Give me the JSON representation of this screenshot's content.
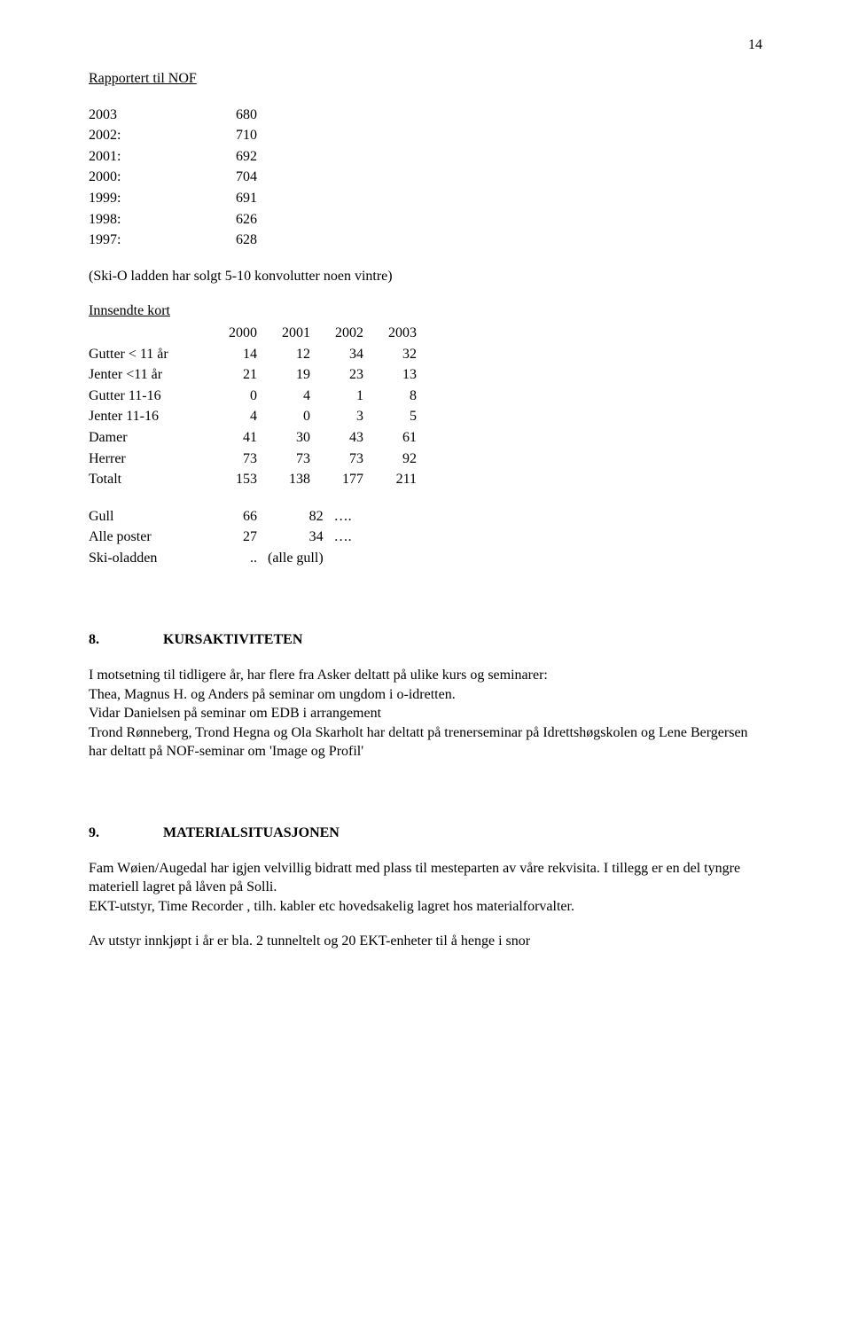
{
  "page_number": "14",
  "heading_rapportert": "Rapportert til NOF",
  "rapportert_rows": [
    {
      "year": "2003",
      "val": "680"
    },
    {
      "year": "2002:",
      "val": "710"
    },
    {
      "year": "2001:",
      "val": "692"
    },
    {
      "year": "2000:",
      "val": "704"
    },
    {
      "year": "1999:",
      "val": "691"
    },
    {
      "year": "1998:",
      "val": "626"
    },
    {
      "year": "1997:",
      "val": "628"
    }
  ],
  "skio_note": "(Ski-O ladden har solgt 5-10 konvolutter noen vintre)",
  "heading_innsendte": "Innsendte kort",
  "innsendte_header": [
    "",
    "2000",
    "2001",
    "2002",
    "2003"
  ],
  "innsendte_rows": [
    {
      "label": "Gutter < 11 år",
      "c": [
        "14",
        "12",
        "34",
        "32"
      ]
    },
    {
      "label": "Jenter <11 år",
      "c": [
        "21",
        "19",
        "23",
        "13"
      ]
    },
    {
      "label": "Gutter 11-16",
      "c": [
        "0",
        "4",
        "1",
        "8"
      ]
    },
    {
      "label": "Jenter 11-16",
      "c": [
        "4",
        "0",
        "3",
        "5"
      ]
    },
    {
      "label": "Damer",
      "c": [
        "41",
        "30",
        "43",
        "61"
      ]
    },
    {
      "label": "Herrer",
      "c": [
        "73",
        "73",
        "73",
        "92"
      ]
    }
  ],
  "innsendte_total": {
    "label": "Totalt",
    "c": [
      "153",
      "138",
      "177",
      "211"
    ]
  },
  "gull_rows": [
    {
      "label": "Gull",
      "c": [
        "66",
        "82",
        "…."
      ]
    },
    {
      "label": "Alle poster",
      "c": [
        "27",
        "34",
        "…."
      ]
    },
    {
      "label": "Ski-oladden",
      "c": [
        "..",
        "(alle gull)",
        ""
      ]
    }
  ],
  "sec8": {
    "num": "8.",
    "title": "KURSAKTIVITETEN",
    "p1": "I motsetning til tidligere år, har flere fra Asker deltatt på ulike kurs og seminarer:",
    "p2": "Thea, Magnus H. og Anders på seminar om ungdom i o-idretten.",
    "p3": "Vidar Danielsen på seminar om EDB i arrangement",
    "p4": "Trond Rønneberg, Trond Hegna og Ola Skarholt har deltatt på trenerseminar på Idrettshøgskolen og Lene Bergersen har deltatt på NOF-seminar om 'Image og Profil'"
  },
  "sec9": {
    "num": "9.",
    "title": "MATERIALSITUASJONEN",
    "p1": "Fam Wøien/Augedal har igjen velvillig bidratt med plass til mesteparten av våre rekvisita. I tillegg er en del tyngre materiell lagret på låven på Solli.",
    "p2": "EKT-utstyr, Time Recorder , tilh. kabler etc hovedsakelig lagret hos materialforvalter.",
    "p3": "Av utstyr innkjøpt i år er bla. 2 tunneltelt og 20 EKT-enheter til å henge i snor"
  }
}
